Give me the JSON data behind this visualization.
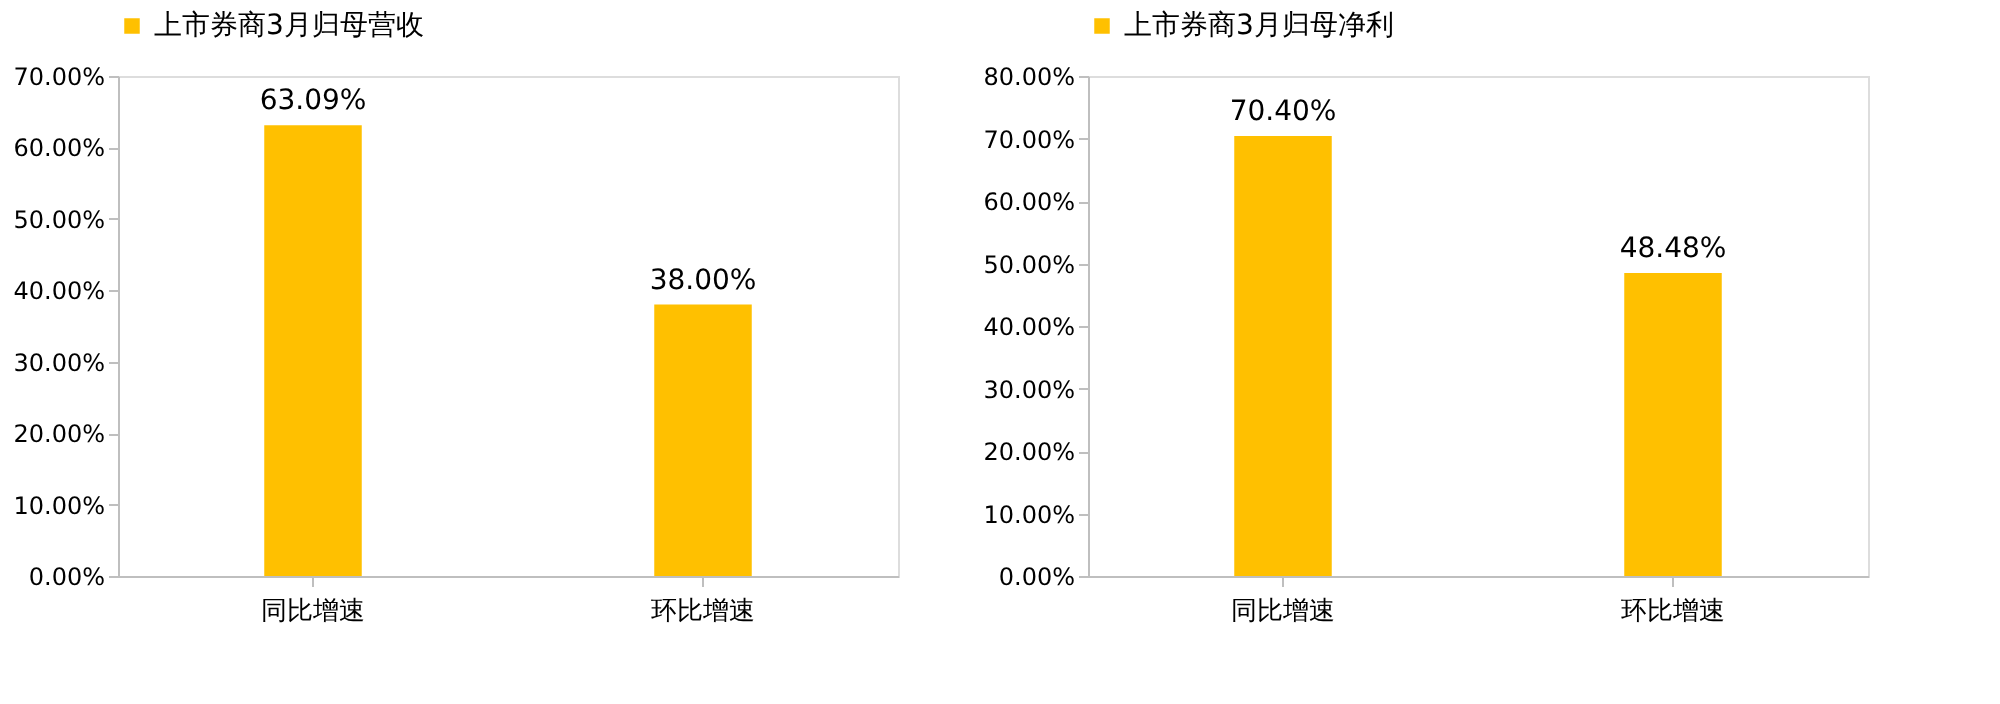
{
  "chart_data": [
    {
      "type": "bar",
      "categories": [
        "同比增速",
        "环比增速"
      ],
      "series": [
        {
          "name": "上市券商3月归母营收",
          "color": "#ffc000",
          "values": [
            63.09,
            38.0
          ],
          "value_labels": [
            "63.09%",
            "38.00%"
          ]
        }
      ],
      "ylim": [
        0,
        70
      ],
      "yticks": [
        {
          "value": 0,
          "label": "0.00%"
        },
        {
          "value": 10,
          "label": "10.00%"
        },
        {
          "value": 20,
          "label": "20.00%"
        },
        {
          "value": 30,
          "label": "30.00%"
        },
        {
          "value": 40,
          "label": "40.00%"
        },
        {
          "value": 50,
          "label": "50.00%"
        },
        {
          "value": 60,
          "label": "60.00%"
        },
        {
          "value": 70,
          "label": "70.00%"
        }
      ],
      "legend": "top",
      "grid": false
    },
    {
      "type": "bar",
      "categories": [
        "同比增速",
        "环比增速"
      ],
      "series": [
        {
          "name": "上市券商3月归母净利",
          "color": "#ffc000",
          "values": [
            70.4,
            48.48
          ],
          "value_labels": [
            "70.40%",
            "48.48%"
          ]
        }
      ],
      "ylim": [
        0,
        80
      ],
      "yticks": [
        {
          "value": 0,
          "label": "0.00%"
        },
        {
          "value": 10,
          "label": "10.00%"
        },
        {
          "value": 20,
          "label": "20.00%"
        },
        {
          "value": 30,
          "label": "30.00%"
        },
        {
          "value": 40,
          "label": "40.00%"
        },
        {
          "value": 50,
          "label": "50.00%"
        },
        {
          "value": 60,
          "label": "60.00%"
        },
        {
          "value": 70,
          "label": "70.00%"
        },
        {
          "value": 80,
          "label": "80.00%"
        }
      ],
      "legend": "top",
      "grid": false
    }
  ]
}
